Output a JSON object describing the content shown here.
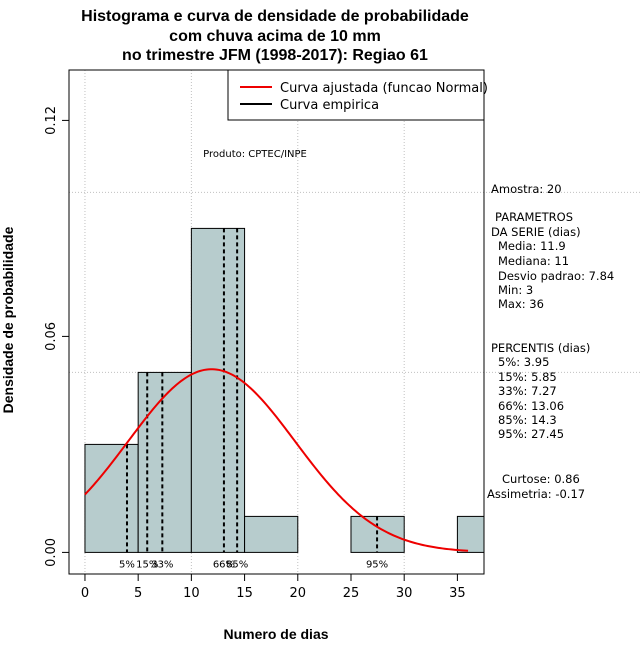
{
  "chart_data": {
    "type": "bar",
    "title": [
      "Histograma e curva de densidade de probabilidade",
      "com chuva acima de 10 mm",
      "no trimestre JFM (1998-2017): Regiao 61"
    ],
    "xlabel": "Numero de dias",
    "ylabel": "Densidade de probabilidade",
    "xlim": [
      -1.5,
      37.5
    ],
    "ylim": [
      -0.006,
      0.134
    ],
    "xticks": [
      0,
      5,
      10,
      15,
      20,
      25,
      30,
      35
    ],
    "yticks": [
      0.0,
      0.06,
      0.12
    ],
    "ytick_labels": [
      "0.00",
      "0.06",
      "0.12"
    ],
    "bins": [
      {
        "from": 0,
        "to": 5,
        "density": 0.03
      },
      {
        "from": 5,
        "to": 10,
        "density": 0.05
      },
      {
        "from": 10,
        "to": 15,
        "density": 0.09
      },
      {
        "from": 15,
        "to": 20,
        "density": 0.01
      },
      {
        "from": 20,
        "to": 25,
        "density": 0.0
      },
      {
        "from": 25,
        "to": 30,
        "density": 0.01
      },
      {
        "from": 30,
        "to": 35,
        "density": 0.0
      },
      {
        "from": 35,
        "to": 40,
        "density": 0.01
      }
    ],
    "normal_fit": {
      "mean": 11.9,
      "sd": 7.84,
      "x_range": [
        0,
        36
      ]
    },
    "percentiles": [
      {
        "label": "5%",
        "value": 3.95
      },
      {
        "label": "15%",
        "value": 5.85
      },
      {
        "label": "33%",
        "value": 7.27
      },
      {
        "label": "66%",
        "value": 13.06
      },
      {
        "label": "85%",
        "value": 14.3
      },
      {
        "label": "95%",
        "value": 27.45
      }
    ],
    "legend": {
      "position": "top-right",
      "entries": [
        {
          "label": "Curva ajustada (funcao Normal)",
          "color": "#ee0000"
        },
        {
          "label": "Curva empirica",
          "color": "#000000"
        }
      ]
    },
    "annotation": "Produto: CPTEC/INPE",
    "colors": {
      "bar_fill": "#b7cccd",
      "bar_stroke": "#000000",
      "curve": "#ee0000",
      "grid": "#c0c0c0"
    }
  },
  "side_panel": {
    "amostra": "Amostra: 20",
    "params_header_1": "PARAMETROS",
    "params_header_2": "DA SERIE (dias)",
    "media": "Media: 11.9",
    "mediana": "Mediana: 11",
    "desvio": "Desvio padrao: 7.84",
    "min": "Min: 3",
    "max": "Max: 36",
    "percentis_header": "PERCENTIS (dias)",
    "p5": "5%: 3.95",
    "p15": "15%: 5.85",
    "p33": "33%: 7.27",
    "p66": "66%: 13.06",
    "p85": "85%: 14.3",
    "p95": "95%: 27.45",
    "curtose": "Curtose: 0.86",
    "assimetria": "Assimetria: -0.17"
  }
}
